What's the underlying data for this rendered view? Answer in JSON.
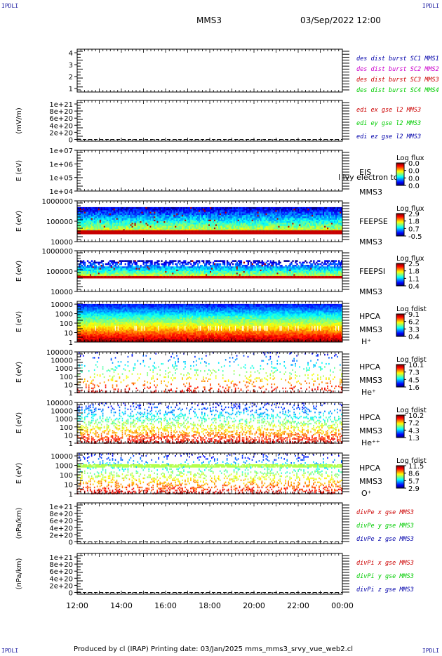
{
  "header": {
    "left": "IPDLI",
    "right": "IPDLI",
    "title": "MMS3",
    "date": "03/Sep/2022 12:00"
  },
  "footer": {
    "left": "IPDLI",
    "right": "IPDLI",
    "text": "Produced by cl (IRAP)   Printing date: 03/Jan/2025   mms_mms3_srvy_vue_web2.cl"
  },
  "colors": {
    "frame": "#000000",
    "blue": "#0000aa",
    "magenta": "#cc00cc",
    "red": "#cc0000",
    "green": "#00cc00"
  },
  "chart_data": [
    {
      "type": "line",
      "ylabel": "",
      "yticks": [
        "1",
        "2",
        "3",
        "4"
      ],
      "ylim": [
        0.7,
        4.3
      ],
      "legend": [
        {
          "text": "des dist burst SC1 MMS1",
          "color": "#0000aa"
        },
        {
          "text": "des dist burst SC2 MMS2",
          "color": "#cc00cc"
        },
        {
          "text": "des dist burst SC3 MMS3",
          "color": "#cc0000"
        },
        {
          "text": "des dist burst SC4 MMS4",
          "color": "#00cc00"
        }
      ],
      "series": []
    },
    {
      "type": "line",
      "ylabel": "(mV/m)",
      "yticks": [
        "0",
        "2e+20",
        "4e+20",
        "6e+20",
        "8e+20",
        "1e+21"
      ],
      "ylim": [
        -5e+19,
        1.1e+21
      ],
      "legend": [
        {
          "text": "edi ex gse l2 MMS3",
          "color": "#cc0000"
        },
        {
          "text": "edi ey gse l2 MMS3",
          "color": "#00cc00"
        },
        {
          "text": "edi ez gse l2 MMS3",
          "color": "#0000aa"
        }
      ],
      "series": []
    },
    {
      "type": "heatmap",
      "ylabel": "E (eV)",
      "yticks": [
        "1e+04",
        "1e+05",
        "1e+06",
        "1e+07"
      ],
      "ylim": [
        10000.0,
        10000000.0
      ],
      "right_labels": [
        "EIS",
        "MMS3"
      ],
      "overlay_text": "l lvy electron to",
      "colorbar": {
        "title": "Log flux",
        "ticks": [
          "0.0",
          "0.0",
          "0.0",
          "0.0"
        ]
      }
    },
    {
      "type": "heatmap",
      "ylabel": "E (eV)",
      "yticks": [
        "10000",
        "100000",
        "1000000"
      ],
      "ylim": [
        10000,
        1000000
      ],
      "right_labels": [
        "FEEPSE",
        "MMS3"
      ],
      "colorbar": {
        "title": "Log flux",
        "ticks": [
          "2.9",
          "1.8",
          "0.7",
          "-0.5"
        ]
      }
    },
    {
      "type": "heatmap",
      "ylabel": "E (eV)",
      "yticks": [
        "10000",
        "100000",
        "1000000"
      ],
      "ylim": [
        10000,
        1000000
      ],
      "right_labels": [
        "FEEPSI",
        "MMS3"
      ],
      "colorbar": {
        "title": "Log flux",
        "ticks": [
          "2.5",
          "1.8",
          "1.1",
          "0.4"
        ]
      }
    },
    {
      "type": "heatmap",
      "ylabel": "E (eV)",
      "yticks": [
        "1",
        "10",
        "100",
        "1000",
        "10000"
      ],
      "ylim": [
        1,
        20000
      ],
      "right_labels": [
        "HPCA",
        "MMS3",
        "H⁺"
      ],
      "colorbar": {
        "title": "Log fdist",
        "ticks": [
          "9.1",
          "6.2",
          "3.3",
          "0.4"
        ]
      }
    },
    {
      "type": "heatmap",
      "ylabel": "E (eV)",
      "yticks": [
        "1",
        "10",
        "100",
        "1000",
        "10000",
        "100000"
      ],
      "ylim": [
        1,
        100000
      ],
      "right_labels": [
        "HPCA",
        "MMS3",
        "He⁺"
      ],
      "colorbar": {
        "title": "Log fdist",
        "ticks": [
          "10.1",
          "7.3",
          "4.5",
          "1.6"
        ]
      }
    },
    {
      "type": "heatmap",
      "ylabel": "E (eV)",
      "yticks": [
        "1",
        "10",
        "100",
        "1000",
        "10000",
        "100000"
      ],
      "ylim": [
        1,
        100000
      ],
      "right_labels": [
        "HPCA",
        "MMS3",
        "He⁺⁺"
      ],
      "colorbar": {
        "title": "Log fdist",
        "ticks": [
          "10.2",
          "7.2",
          "4.3",
          "1.3"
        ]
      }
    },
    {
      "type": "heatmap",
      "ylabel": "E (eV)",
      "yticks": [
        "1",
        "10",
        "100",
        "1000",
        "10000"
      ],
      "ylim": [
        1,
        20000
      ],
      "right_labels": [
        "HPCA",
        "MMS3",
        "O⁺"
      ],
      "colorbar": {
        "title": "Log fdist",
        "ticks": [
          "11.5",
          "8.6",
          "5.7",
          "2.9"
        ]
      }
    },
    {
      "type": "line",
      "ylabel": "(nPa/km)",
      "yticks": [
        "0",
        "2e+20",
        "4e+20",
        "6e+20",
        "8e+20",
        "1e+21"
      ],
      "ylim": [
        -5e+19,
        1.1e+21
      ],
      "legend": [
        {
          "text": "divPe x gse MMS3",
          "color": "#cc0000"
        },
        {
          "text": "divPe y gse MMS3",
          "color": "#00cc00"
        },
        {
          "text": "divPe z gse MMS3",
          "color": "#0000aa"
        }
      ],
      "series": []
    },
    {
      "type": "line",
      "ylabel": "(nPa/km)",
      "yticks": [
        "0",
        "2e+20",
        "4e+20",
        "6e+20",
        "8e+20",
        "1e+21"
      ],
      "ylim": [
        -5e+19,
        1.1e+21
      ],
      "legend": [
        {
          "text": "divPi x gse MMS3",
          "color": "#cc0000"
        },
        {
          "text": "divPi y gse MMS3",
          "color": "#00cc00"
        },
        {
          "text": "divPi z gse MMS3",
          "color": "#0000aa"
        }
      ],
      "series": []
    }
  ],
  "time_axis": {
    "ticks": [
      "12:00",
      "14:00",
      "16:00",
      "18:00",
      "20:00",
      "22:00",
      "00:00"
    ]
  }
}
